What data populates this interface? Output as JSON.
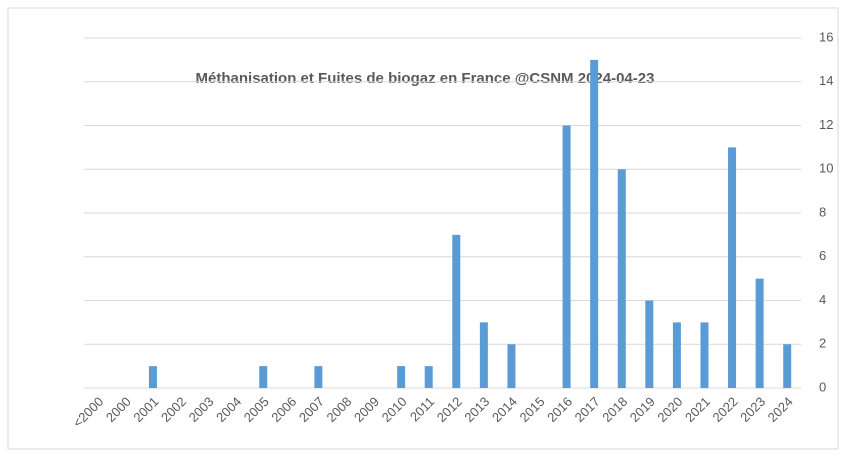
{
  "chart_data": {
    "type": "bar",
    "title": "Méthanisation et Fuites de biogaz en France @CSNM 2024-04-23",
    "categories": [
      "<2000",
      "2000",
      "2001",
      "2002",
      "2003",
      "2004",
      "2005",
      "2006",
      "2007",
      "2008",
      "2009",
      "2010",
      "2011",
      "2012",
      "2013",
      "2014",
      "2015",
      "2016",
      "2017",
      "2018",
      "2019",
      "2020",
      "2021",
      "2022",
      "2023",
      "2024"
    ],
    "values": [
      0,
      0,
      1,
      0,
      0,
      0,
      1,
      0,
      1,
      0,
      0,
      1,
      1,
      7,
      3,
      2,
      0,
      12,
      15,
      10,
      4,
      3,
      3,
      11,
      5,
      2
    ],
    "color": "#5b9bd5",
    "ylim": [
      0,
      16
    ],
    "yticks": [
      0,
      2,
      4,
      6,
      8,
      10,
      12,
      14,
      16
    ],
    "grid": true,
    "y_axis_side": "right"
  }
}
